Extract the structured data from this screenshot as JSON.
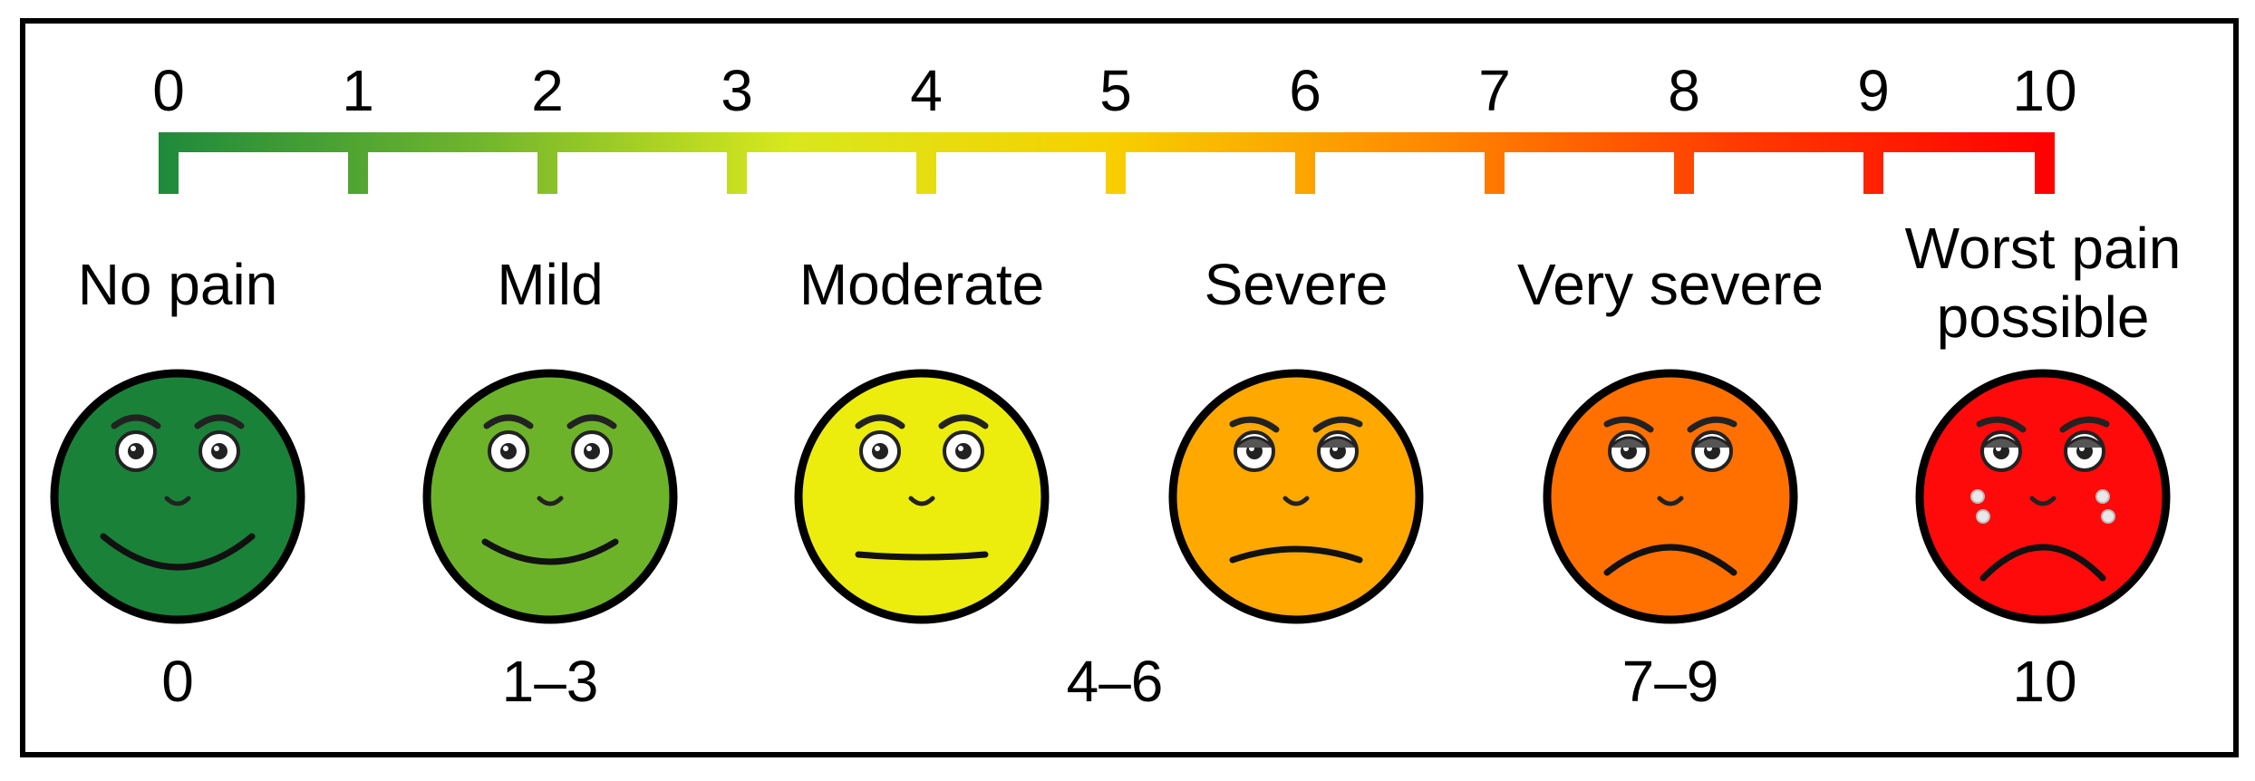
{
  "scale": {
    "ticks": [
      "0",
      "1",
      "2",
      "3",
      "4",
      "5",
      "6",
      "7",
      "8",
      "9",
      "10"
    ],
    "gradient_colors": [
      "#1e8a3c",
      "#6fb52c",
      "#d8e81d",
      "#f7d000",
      "#ff8a00",
      "#ff3a00",
      "#ff0000"
    ]
  },
  "categories": [
    {
      "label": "No pain",
      "range": "0",
      "color": "#1a8238",
      "face": "happy-big"
    },
    {
      "label": "Mild",
      "range": "1–3",
      "color": "#6db32a",
      "face": "happy"
    },
    {
      "label": "Moderate",
      "range": "",
      "color": "#eded0d",
      "face": "neutral"
    },
    {
      "label": "Severe",
      "range": "",
      "color": "#ffa800",
      "face": "slight-frown"
    },
    {
      "label": "Very severe",
      "range": "7–9",
      "color": "#ff7000",
      "face": "frown"
    },
    {
      "label": "Worst pain\npossible",
      "range": "10",
      "color": "#ff0a0a",
      "face": "crying"
    }
  ],
  "middle_range": "4–6"
}
